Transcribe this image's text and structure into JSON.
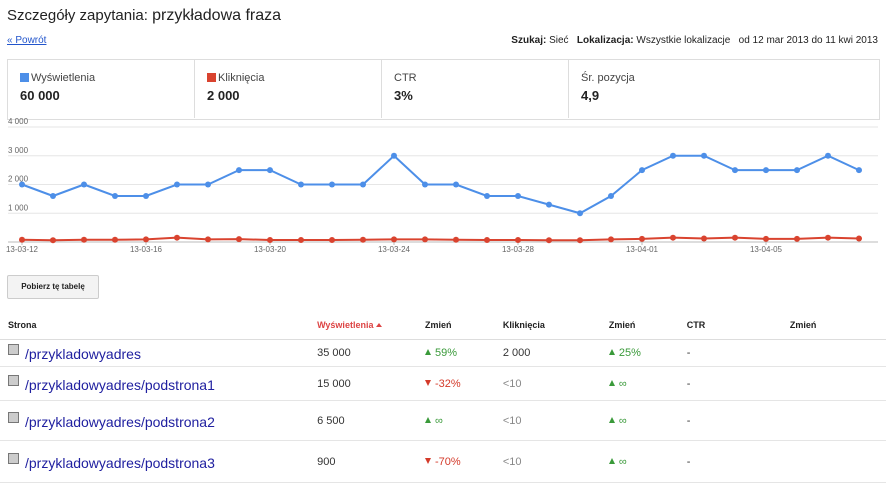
{
  "header": {
    "label": "Szczegóły zapytania:",
    "query": "przykładowa fraza",
    "back": "« Powrót",
    "filters": [
      {
        "key": "Szukaj:",
        "value": "Sieć"
      },
      {
        "key": "Lokalizacja:",
        "value": "Wszystkie lokalizacje"
      }
    ],
    "range": "od 12 mar 2013 do 11 kwi 2013"
  },
  "summary": [
    {
      "label": "Wyświetlenia",
      "value": "60 000",
      "series": 0
    },
    {
      "label": "Kliknięcia",
      "value": "2 000",
      "series": 1
    },
    {
      "label": "CTR",
      "value": "3%"
    },
    {
      "label": "Śr. pozycja",
      "value": "4,9"
    }
  ],
  "chart_data": {
    "type": "line",
    "categories": [
      "13-03-12",
      null,
      null,
      null,
      "13-03-16",
      null,
      null,
      null,
      "13-03-20",
      null,
      null,
      null,
      "13-03-24",
      null,
      null,
      null,
      "13-03-28",
      null,
      null,
      null,
      "13-04-01",
      null,
      null,
      null,
      "13-04-05",
      null,
      null,
      null
    ],
    "series": [
      {
        "name": "Wyświetlenia",
        "color": "#4d8fe8",
        "values": [
          2000,
          1600,
          2000,
          1600,
          1600,
          2000,
          2000,
          2500,
          2500,
          2000,
          2000,
          2000,
          3000,
          2000,
          2000,
          1600,
          1600,
          1300,
          1000,
          1600,
          2500,
          3000,
          3000,
          2500,
          2500,
          2500,
          3000,
          2500
        ]
      },
      {
        "name": "Kliknięcia",
        "color": "#d9432f",
        "values": [
          80,
          60,
          80,
          80,
          90,
          150,
          90,
          100,
          70,
          70,
          70,
          80,
          90,
          90,
          80,
          70,
          70,
          60,
          60,
          90,
          110,
          150,
          120,
          150,
          110,
          110,
          150,
          120
        ]
      }
    ],
    "ylim": [
      0,
      4000
    ],
    "yticks": [
      {
        "value": 1000,
        "label": "1 000"
      },
      {
        "value": 2000,
        "label": "2 000"
      },
      {
        "value": 3000,
        "label": "3 000"
      },
      {
        "value": 4000,
        "label": "4 000"
      }
    ],
    "grid": true
  },
  "button": "Pobierz tę tabelę",
  "table": {
    "columns": [
      "Strona",
      "Wyświetlenia",
      "Zmień",
      "Kliknięcia",
      "Zmień",
      "CTR",
      "Zmień"
    ],
    "rows": [
      [
        {
          "text": "/przykladowyadres"
        },
        {
          "text": "35 000"
        },
        {
          "text": "59%",
          "trend": "up"
        },
        {
          "text": "2 000"
        },
        {
          "text": "25%",
          "trend": "up"
        },
        {
          "text": "-"
        }
      ],
      [
        {
          "text": "/przykladowyadres/podstrona1"
        },
        {
          "text": "15 000"
        },
        {
          "text": "-32%",
          "trend": "down"
        },
        {
          "text": "<10"
        },
        {
          "text": "∞",
          "trend": "up"
        },
        {
          "text": "-"
        }
      ],
      [
        {
          "text": "/przykladowyadres/podstrona2"
        },
        {
          "text": "6 500"
        },
        {
          "text": "∞",
          "trend": "up"
        },
        {
          "text": "<10"
        },
        {
          "text": "∞",
          "trend": "up"
        },
        {
          "text": "-"
        }
      ],
      [
        {
          "text": "/przykladowyadres/podstrona3"
        },
        {
          "text": "900"
        },
        {
          "text": "-70%",
          "trend": "down"
        },
        {
          "text": "<10"
        },
        {
          "text": "∞",
          "trend": "up"
        },
        {
          "text": "-"
        }
      ]
    ]
  }
}
